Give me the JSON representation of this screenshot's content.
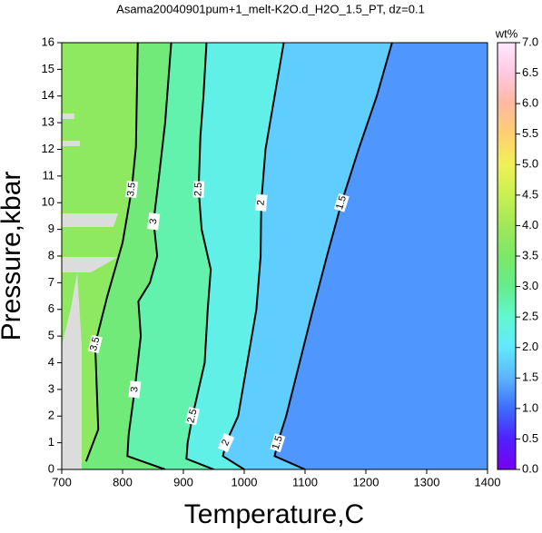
{
  "chart_data": {
    "type": "contour",
    "title": "Asama20040901pum+1_melt-K2O.d_H2O_1.5_PT, dz=0.1",
    "xlabel": "Temperature,C",
    "ylabel": "Pressure,kbar",
    "xlim": [
      700,
      1400
    ],
    "xticks": [
      700,
      800,
      900,
      1000,
      1100,
      1200,
      1300,
      1400
    ],
    "ylim": [
      0,
      16
    ],
    "yticks": [
      0,
      1,
      2,
      3,
      4,
      5,
      6,
      7,
      8,
      9,
      10,
      11,
      12,
      13,
      14,
      15,
      16
    ],
    "colorbar": {
      "label": "wt%",
      "clim": [
        0,
        7
      ],
      "ticks": [
        {
          "value": 0,
          "label": "0.0"
        },
        {
          "value": 0.5,
          "label": "0.5"
        },
        {
          "value": 1,
          "label": "1.0"
        },
        {
          "value": 1.5,
          "label": "1.5"
        },
        {
          "value": 2,
          "label": "2.0"
        },
        {
          "value": 2.5,
          "label": "2.5"
        },
        {
          "value": 3,
          "label": "3.0"
        },
        {
          "value": 3.5,
          "label": "3.5"
        },
        {
          "value": 4,
          "label": "4.0"
        },
        {
          "value": 4.5,
          "label": "4.5"
        },
        {
          "value": 5,
          "label": "5.0"
        },
        {
          "value": 5.5,
          "label": "5.5"
        },
        {
          "value": 6,
          "label": "6.0"
        },
        {
          "value": 6.5,
          "label": "6.5"
        },
        {
          "value": 7,
          "label": "7.0"
        }
      ],
      "colormap": [
        "#7800f0",
        "#5020ff",
        "#3c6cff",
        "#5cb4ff",
        "#62e8ff",
        "#60f8d0",
        "#66ec8c",
        "#7ce868",
        "#a0e858",
        "#c8f050",
        "#f0f058",
        "#ffd070",
        "#ffb8a0",
        "#ffc8e0",
        "#ffe8ff"
      ]
    },
    "contours": [
      {
        "level": 1.5,
        "x": [
          1100,
          1050,
          1055,
          1069,
          1091,
          1113,
          1136,
          1160,
          1188,
          1218,
          1243
        ],
        "y": [
          0,
          0.5,
          1,
          2,
          4,
          6,
          8,
          10,
          12,
          14,
          16
        ]
      },
      {
        "level": 2,
        "x": [
          1000,
          965,
          970,
          990,
          1005,
          1020,
          1027,
          1028,
          1035,
          1050,
          1065
        ],
        "y": [
          0,
          0.5,
          1,
          2,
          4,
          6,
          8,
          10,
          12,
          14,
          16
        ]
      },
      {
        "level": 2.5,
        "x": [
          950,
          905,
          907,
          915,
          935,
          940,
          945,
          930,
          925,
          928,
          933,
          938
        ],
        "y": [
          0,
          0.4,
          1,
          2,
          4,
          6,
          7.5,
          9,
          10.5,
          12.5,
          14,
          16
        ]
      },
      {
        "level": 3,
        "x": [
          870,
          808,
          810,
          820,
          830,
          826,
          845,
          857,
          851,
          860,
          870,
          880
        ],
        "y": [
          0,
          0.5,
          1.3,
          3,
          5,
          6.3,
          7,
          8,
          9.3,
          11,
          13,
          16
        ]
      },
      {
        "level": 3.5,
        "x": [
          740,
          760,
          755,
          775,
          800,
          815,
          822,
          825
        ],
        "y": [
          0.3,
          1.5,
          4.7,
          6.5,
          8.5,
          10.5,
          12.1,
          16
        ]
      }
    ]
  }
}
